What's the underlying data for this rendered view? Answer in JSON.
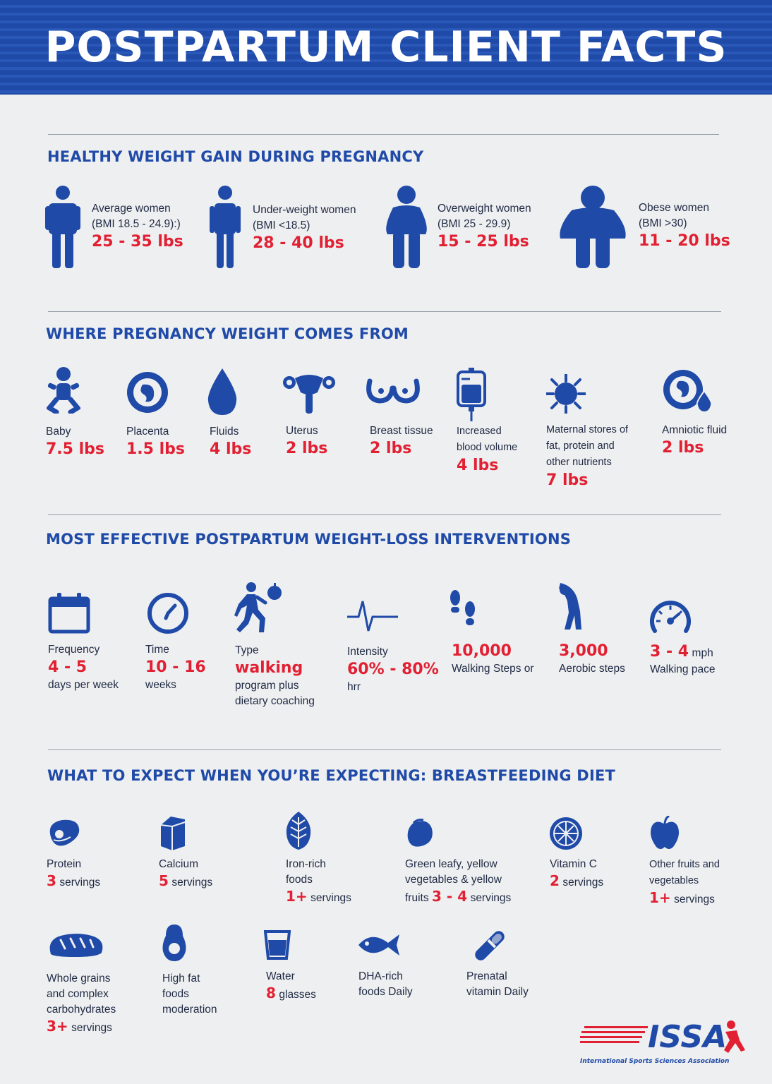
{
  "title": "POSTPARTUM CLIENT FACTS",
  "colors": {
    "brand_blue": "#1f4aa8",
    "accent_red": "#e22033",
    "background": "#eeeff0"
  },
  "sections": {
    "weight_gain": {
      "title": "HEALTHY WEIGHT GAIN DURING PREGNANCY",
      "items": [
        {
          "icon": "average-woman-icon",
          "label": "Average women",
          "sub": "(BMI 18.5 - 24.9):)",
          "value": "25 - 35 lbs"
        },
        {
          "icon": "underweight-woman-icon",
          "label": "Under-weight women",
          "sub": "(BMI <18.5)",
          "value": "28 - 40 lbs"
        },
        {
          "icon": "overweight-woman-icon",
          "label": "Overweight women",
          "sub": "(BMI 25 - 29.9)",
          "value": "15 - 25 lbs"
        },
        {
          "icon": "obese-woman-icon",
          "label": "Obese women",
          "sub": "(BMI >30)",
          "value": "11 - 20 lbs"
        }
      ]
    },
    "weight_sources": {
      "title": "WHERE PREGNANCY WEIGHT COMES FROM",
      "items": [
        {
          "icon": "baby-icon",
          "label": "Baby",
          "value": "7.5 lbs"
        },
        {
          "icon": "placenta-icon",
          "label": "Placenta",
          "value": "1.5 lbs"
        },
        {
          "icon": "fluid-drop-icon",
          "label": "Fluids",
          "value": "4 lbs"
        },
        {
          "icon": "uterus-icon",
          "label": "Uterus",
          "value": "2 lbs"
        },
        {
          "icon": "breast-tissue-icon",
          "label": "Breast tissue",
          "value": "2 lbs"
        },
        {
          "icon": "blood-bag-icon",
          "label": "Increased",
          "label2": "blood volume",
          "value": "4 lbs"
        },
        {
          "icon": "cell-icon",
          "label": "Maternal stores of",
          "label2": "fat, protein and",
          "label3": "other nutrients",
          "value": "7 lbs"
        },
        {
          "icon": "amniotic-fluid-icon",
          "label": "Amniotic fluid",
          "value": "2 lbs"
        }
      ]
    },
    "interventions": {
      "title": "MOST EFFECTIVE POSTPARTUM WEIGHT-LOSS INTERVENTIONS",
      "items": [
        {
          "icon": "calendar-icon",
          "label": "Frequency",
          "value": "4 - 5",
          "after": "days per week"
        },
        {
          "icon": "clock-icon",
          "label": "Time",
          "value": "10 - 16",
          "after": "weeks"
        },
        {
          "icon": "walking-person-icon",
          "label": "Type",
          "value": "walking",
          "after": "program plus",
          "after2": "dietary coaching"
        },
        {
          "icon": "heartbeat-icon",
          "label": "Intensity",
          "value": "60% - 80%",
          "after": "hrr"
        },
        {
          "icon": "footprints-icon",
          "value": "10,000",
          "after": "Walking Steps or"
        },
        {
          "icon": "aerobic-person-icon",
          "value": "3,000",
          "after": "Aerobic steps"
        },
        {
          "icon": "speedometer-icon",
          "value": "3 - 4",
          "unit": "mph",
          "after": "Walking pace"
        }
      ]
    },
    "diet": {
      "title": "WHAT TO EXPECT WHEN YOU’RE EXPECTING: BREASTFEEDING DIET",
      "items": [
        {
          "icon": "steak-icon",
          "label": "Protein",
          "value": "3",
          "after": "servings"
        },
        {
          "icon": "milk-carton-icon",
          "label": "Calcium",
          "value": "5",
          "after": "servings"
        },
        {
          "icon": "leaf-icon",
          "label": "Iron-rich",
          "label2": "foods",
          "value": "1+",
          "after": "servings"
        },
        {
          "icon": "lemon-icon",
          "label": "Green leafy, yellow",
          "label2": "vegetables & yellow",
          "label3": "fruits",
          "value": "3 - 4",
          "after": "servings"
        },
        {
          "icon": "citrus-slice-icon",
          "label": "Vitamin C",
          "value": "2",
          "after": "servings"
        },
        {
          "icon": "apple-icon",
          "label": "Other fruits and",
          "label2": "vegetables",
          "value": "1+",
          "after": "servings"
        },
        {
          "icon": "bread-icon",
          "label": "Whole grains",
          "label2": "and complex",
          "label3": "carbohydrates",
          "value": "3+",
          "after": "servings"
        },
        {
          "icon": "avocado-icon",
          "label": "High fat",
          "label2": "foods",
          "label3": "moderation"
        },
        {
          "icon": "water-glass-icon",
          "label": "Water",
          "value": "8",
          "after": "glasses"
        },
        {
          "icon": "fish-icon",
          "label": "DHA-rich",
          "label2": "foods Daily"
        },
        {
          "icon": "pill-icon",
          "label": "Prenatal",
          "label2": "vitamin Daily"
        }
      ]
    }
  },
  "logo": {
    "icon": "issa-logo-icon",
    "text": "ISSA",
    "caption": "International Sports Sciences Association"
  }
}
